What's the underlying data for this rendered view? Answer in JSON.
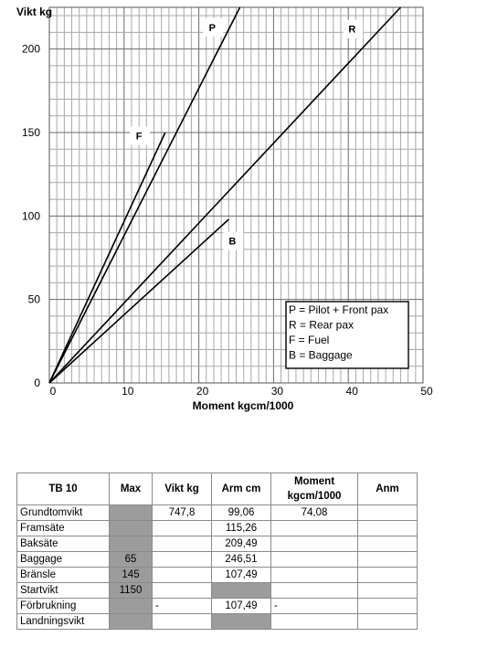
{
  "chart_data": {
    "type": "line",
    "xlabel": "Moment kgcm/1000",
    "ylabel": "Vikt kg",
    "xlim": [
      0,
      50
    ],
    "ylim": [
      0,
      225
    ],
    "x_ticks": [
      "0",
      "10",
      "20",
      "30",
      "40",
      "50"
    ],
    "y_ticks": [
      "0",
      "50",
      "100",
      "150",
      "200"
    ],
    "grid": true,
    "legend_position": "bottom-right",
    "legend": [
      "P = Pilot + Front pax",
      "R = Rear pax",
      "F = Fuel",
      "B = Baggage"
    ],
    "series": [
      {
        "name": "P",
        "x": [
          0,
          25.5
        ],
        "y": [
          0,
          225
        ]
      },
      {
        "name": "R",
        "x": [
          0,
          47
        ],
        "y": [
          0,
          225
        ]
      },
      {
        "name": "F",
        "x": [
          0,
          15.5
        ],
        "y": [
          0,
          150
        ]
      },
      {
        "name": "B",
        "x": [
          0,
          24
        ],
        "y": [
          0,
          98
        ]
      }
    ]
  },
  "table": {
    "headers": [
      "TB 10",
      "Max",
      "Vikt kg",
      "Arm cm",
      "Moment kgcm/1000",
      "Anm"
    ],
    "rows": [
      {
        "label": "Grundtomvikt",
        "max": "",
        "vikt": "747,8",
        "arm": "99,06",
        "moment": "74,08",
        "anm": ""
      },
      {
        "label": "Framsäte",
        "max": "",
        "vikt": "",
        "arm": "115,26",
        "moment": "",
        "anm": ""
      },
      {
        "label": "Baksäte",
        "max": "",
        "vikt": "",
        "arm": "209,49",
        "moment": "",
        "anm": ""
      },
      {
        "label": "Baggage",
        "max": "65",
        "vikt": "",
        "arm": "246,51",
        "moment": "",
        "anm": ""
      },
      {
        "label": "Bränsle",
        "max": "145",
        "vikt": "",
        "arm": "107,49",
        "moment": "",
        "anm": ""
      },
      {
        "label": "Startvikt",
        "max": "1150",
        "vikt": "",
        "arm": "",
        "moment": "",
        "anm": ""
      },
      {
        "label": "Förbrukning",
        "max": "",
        "vikt": "-",
        "arm": "107,49",
        "moment": "-",
        "anm": ""
      },
      {
        "label": "Landningsvikt",
        "max": "",
        "vikt": "",
        "arm": "",
        "moment": "",
        "anm": ""
      }
    ]
  }
}
